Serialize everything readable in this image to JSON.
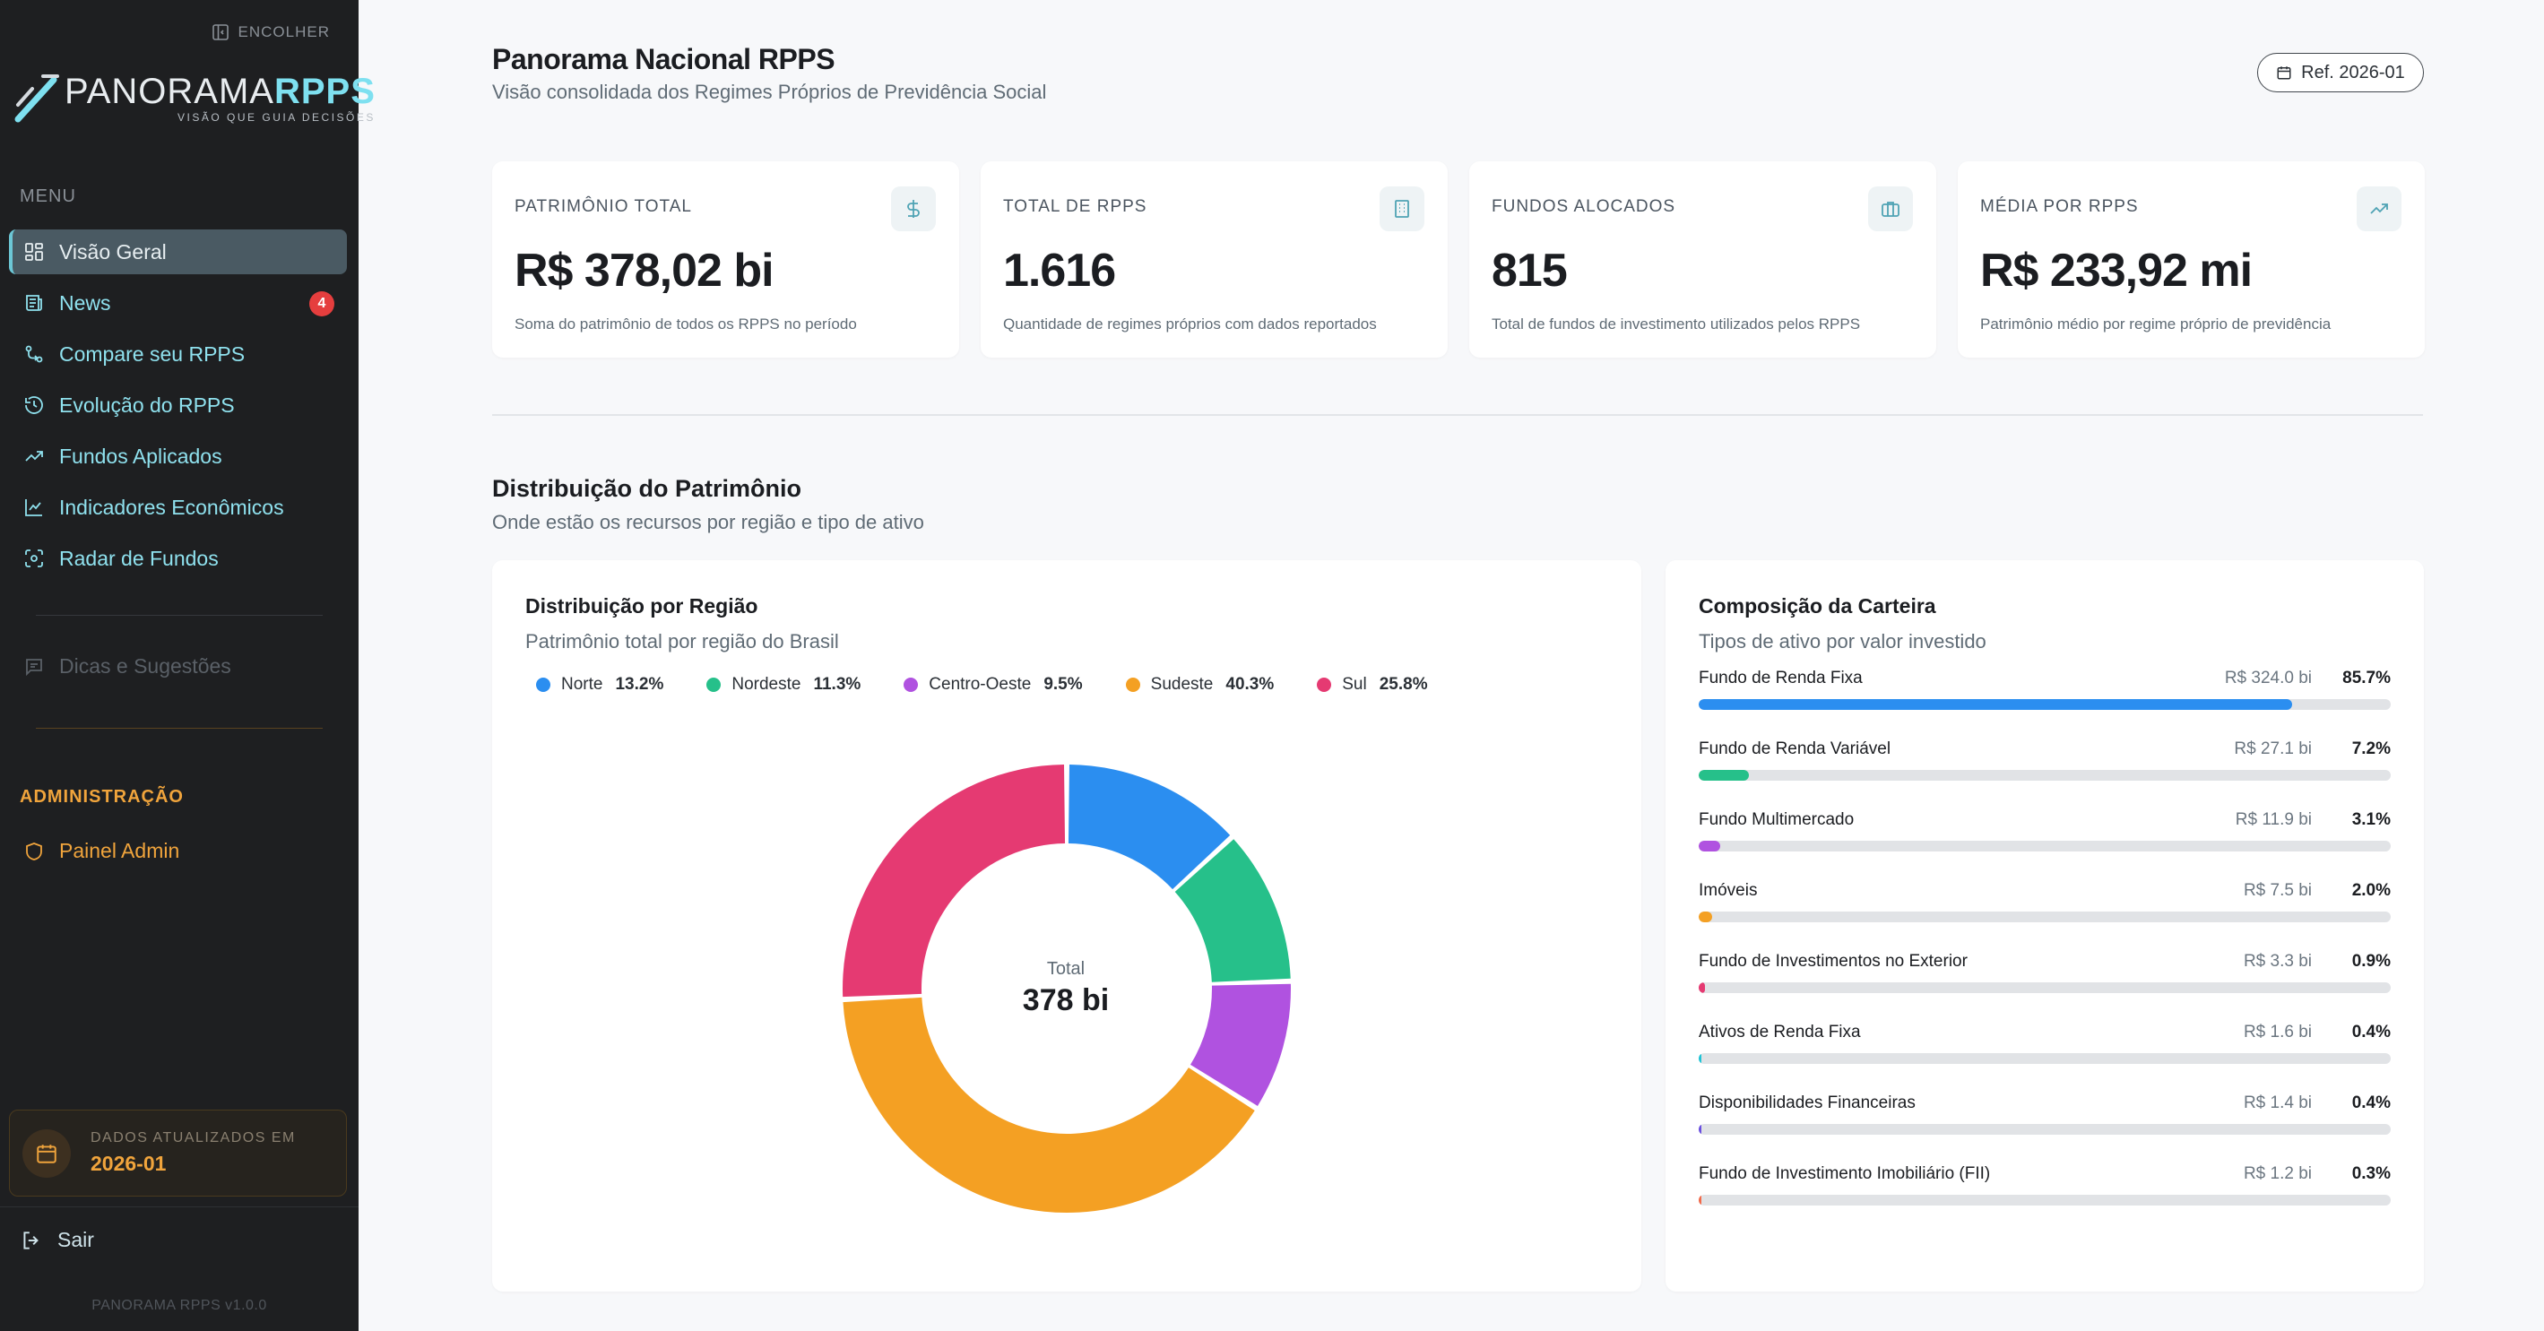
{
  "sidebar": {
    "collapse_label": "ENCOLHER",
    "logo": {
      "text_a": "PANORAMA",
      "text_b": "RPPS",
      "tagline": "VISÃO QUE GUIA DECISÕES"
    },
    "menu_label": "MENU",
    "items": [
      {
        "label": "Visão Geral",
        "icon": "grid-icon",
        "active": true
      },
      {
        "label": "News",
        "icon": "newspaper-icon",
        "badge": "4"
      },
      {
        "label": "Compare seu RPPS",
        "icon": "compare-icon"
      },
      {
        "label": "Evolução do RPPS",
        "icon": "history-icon"
      },
      {
        "label": "Fundos Aplicados",
        "icon": "trend-icon"
      },
      {
        "label": "Indicadores Econômicos",
        "icon": "chart-line-icon"
      },
      {
        "label": "Radar de Fundos",
        "icon": "radar-icon"
      }
    ],
    "tips_label": "Dicas e Sugestões",
    "admin_label": "ADMINISTRAÇÃO",
    "admin_item": "Painel Admin",
    "data_box": {
      "label": "DADOS ATUALIZADOS EM",
      "value": "2026-01"
    },
    "logout": "Sair",
    "version": "PANORAMA RPPS v1.0.0"
  },
  "header": {
    "title": "Panorama Nacional RPPS",
    "subtitle": "Visão consolidada dos Regimes Próprios de Previdência Social",
    "ref": "Ref. 2026-01"
  },
  "stats": [
    {
      "label": "PATRIMÔNIO TOTAL",
      "value": "R$ 378,02 bi",
      "desc": "Soma do patrimônio de todos os RPPS no período",
      "icon": "dollar-icon"
    },
    {
      "label": "TOTAL DE RPPS",
      "value": "1.616",
      "desc": "Quantidade de regimes próprios com dados reportados",
      "icon": "building-icon"
    },
    {
      "label": "FUNDOS ALOCADOS",
      "value": "815",
      "desc": "Total de fundos de investimento utilizados pelos RPPS",
      "icon": "briefcase-icon"
    },
    {
      "label": "MÉDIA POR RPPS",
      "value": "R$ 233,92 mi",
      "desc": "Patrimônio médio por regime próprio de previdência",
      "icon": "trending-up-icon"
    }
  ],
  "section": {
    "title": "Distribuição do Patrimônio",
    "subtitle": "Onde estão os recursos por região e tipo de ativo"
  },
  "region_panel": {
    "title": "Distribuição por Região",
    "subtitle": "Patrimônio total por região do Brasil",
    "center_label": "Total",
    "center_value": "378 bi"
  },
  "portfolio_panel": {
    "title": "Composição da Carteira",
    "subtitle": "Tipos de ativo por valor investido"
  },
  "chart_data": [
    {
      "type": "pie",
      "title": "Distribuição por Região",
      "categories": [
        "Norte",
        "Nordeste",
        "Centro-Oeste",
        "Sudeste",
        "Sul"
      ],
      "values": [
        13.2,
        11.3,
        9.5,
        40.3,
        25.8
      ],
      "value_labels": [
        "13.2%",
        "11.3%",
        "9.5%",
        "40.3%",
        "25.8%"
      ],
      "colors": [
        "#2b8ef0",
        "#26c08a",
        "#b052e0",
        "#f4a023",
        "#e53a72"
      ],
      "donut": true,
      "legend": "top"
    },
    {
      "type": "bar",
      "title": "Composição da Carteira",
      "orientation": "horizontal",
      "categories": [
        "Fundo de Renda Fixa",
        "Fundo de Renda Variável",
        "Fundo Multimercado",
        "Imóveis",
        "Fundo de Investimentos no Exterior",
        "Ativos de Renda Fixa",
        "Disponibilidades Financeiras",
        "Fundo de Investimento Imobiliário (FII)"
      ],
      "values": [
        85.7,
        7.2,
        3.1,
        2.0,
        0.9,
        0.4,
        0.4,
        0.3
      ],
      "amounts": [
        "R$ 324.0 bi",
        "R$ 27.1 bi",
        "R$ 11.9 bi",
        "R$ 7.5 bi",
        "R$ 3.3 bi",
        "R$ 1.6 bi",
        "R$ 1.4 bi",
        "R$ 1.2 bi"
      ],
      "value_labels": [
        "85.7%",
        "7.2%",
        "3.1%",
        "2.0%",
        "0.9%",
        "0.4%",
        "0.4%",
        "0.3%"
      ],
      "colors": [
        "#2b8ef0",
        "#26c08a",
        "#b052e0",
        "#f4a023",
        "#e53a72",
        "#20c4d6",
        "#6a4fe0",
        "#f26a4a"
      ],
      "ylim": [
        0,
        100
      ]
    }
  ]
}
